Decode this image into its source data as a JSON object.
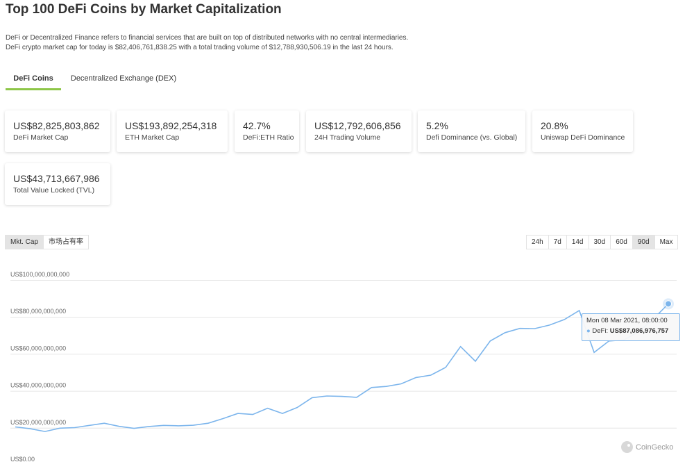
{
  "page": {
    "title": "Top 100 DeFi Coins by Market Capitalization",
    "description_1": "DeFi or Decentralized Finance refers to financial services that are built on top of distributed networks with no central intermediaries.",
    "description_2": "DeFi crypto market cap for today is $82,406,761,838.25 with a total trading volume of $12,788,930,506.19 in the last 24 hours."
  },
  "tabs": [
    {
      "label": "DeFi Coins",
      "active": true
    },
    {
      "label": "Decentralized Exchange (DEX)",
      "active": false
    }
  ],
  "stats": [
    {
      "value": "US$82,825,803,862",
      "label": "DeFi Market Cap"
    },
    {
      "value": "US$193,892,254,318",
      "label": "ETH Market Cap"
    },
    {
      "value": "42.7%",
      "label": "DeFi:ETH Ratio"
    },
    {
      "value": "US$12,792,606,856",
      "label": "24H Trading Volume"
    },
    {
      "value": "5.2%",
      "label": "Defi Dominance (vs. Global)"
    },
    {
      "value": "20.8%",
      "label": "Uniswap DeFi Dominance"
    },
    {
      "value": "US$43,713,667,986",
      "label": "Total Value Locked (TVL)"
    }
  ],
  "chart_toggle": [
    {
      "label": "Mkt. Cap",
      "active": true
    },
    {
      "label": "市场占有率",
      "active": false
    }
  ],
  "ranges": [
    {
      "label": "24h",
      "active": false
    },
    {
      "label": "7d",
      "active": false
    },
    {
      "label": "14d",
      "active": false
    },
    {
      "label": "30d",
      "active": false
    },
    {
      "label": "60d",
      "active": false
    },
    {
      "label": "90d",
      "active": true
    },
    {
      "label": "Max",
      "active": false
    }
  ],
  "tooltip": {
    "date": "Mon 08 Mar 2021, 08:00:00",
    "series": "DeFi:",
    "value": "US$87,086,976,757"
  },
  "watermark": "CoinGecko",
  "colors": {
    "line": "#7cb5ec",
    "accent": "#8dc647",
    "grid": "#e6e6e6"
  },
  "chart_data": {
    "type": "line",
    "ylabel": "",
    "xlabel": "",
    "ylim": [
      0,
      100000000000
    ],
    "yticks": [
      {
        "value": 0,
        "label": "US$0.00"
      },
      {
        "value": 20000000000,
        "label": "US$20,000,000,000"
      },
      {
        "value": 40000000000,
        "label": "US$40,000,000,000"
      },
      {
        "value": 60000000000,
        "label": "US$60,000,000,000"
      },
      {
        "value": 80000000000,
        "label": "US$80,000,000,000"
      },
      {
        "value": 100000000000,
        "label": "US$100,000,000,000"
      }
    ],
    "grid": true,
    "series": [
      {
        "name": "DeFi",
        "values": [
          20500000000,
          19500000000,
          18000000000,
          19800000000,
          20100000000,
          21300000000,
          22500000000,
          20800000000,
          19700000000,
          20700000000,
          21300000000,
          21100000000,
          21400000000,
          22500000000,
          25000000000,
          27800000000,
          27200000000,
          30600000000,
          27800000000,
          31000000000,
          36300000000,
          37200000000,
          37000000000,
          36500000000,
          41800000000,
          42400000000,
          43800000000,
          47200000000,
          48500000000,
          52700000000,
          64000000000,
          56000000000,
          67000000000,
          71500000000,
          73800000000,
          73700000000,
          75600000000,
          78600000000,
          83500000000,
          60800000000,
          67000000000,
          67500000000,
          72000000000,
          79000000000,
          87086976757
        ]
      }
    ]
  }
}
